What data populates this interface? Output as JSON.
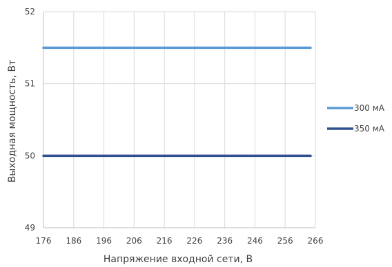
{
  "chart_data": {
    "type": "line",
    "xlabel": "Напряжение входной сети, В",
    "ylabel": "Выходная мощность, Вт",
    "x": [
      176,
      186,
      196,
      206,
      216,
      226,
      236,
      246,
      256,
      266
    ],
    "x_tick_labels": [
      "176",
      "186",
      "196",
      "206",
      "216",
      "226",
      "236",
      "246",
      "256",
      "266"
    ],
    "y_tick_labels": [
      "49",
      "50",
      "51",
      "52"
    ],
    "xlim": [
      176,
      266
    ],
    "ylim": [
      49,
      52
    ],
    "grid": true,
    "legend_position": "right",
    "series": [
      {
        "name": "300 мА",
        "color": "#5b9bd5",
        "values": [
          51.5,
          51.5,
          51.5,
          51.5,
          51.5,
          51.5,
          51.5,
          51.5,
          51.5,
          51.5
        ]
      },
      {
        "name": "350 мА",
        "color": "#2f4f8f",
        "values": [
          50,
          50,
          50,
          50,
          50,
          50,
          50,
          50,
          50,
          50
        ]
      }
    ]
  }
}
